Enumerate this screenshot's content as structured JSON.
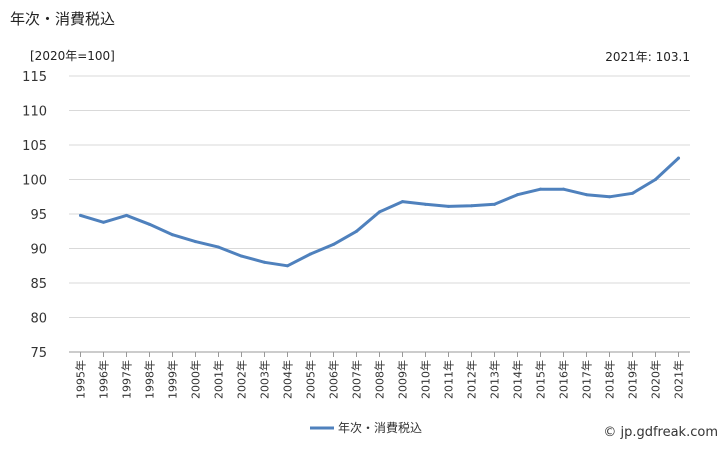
{
  "title": "年次・消費税込",
  "unit_label": "[2020年=100]",
  "latest_label": "2021年: 103.1",
  "credit": "© jp.gdfreak.com",
  "colors": {
    "series": "#4f81bd",
    "grid": "#d9d9d9",
    "axis": "#999999"
  },
  "chart_data": {
    "type": "line",
    "title": "",
    "xlabel": "",
    "ylabel": "",
    "ylim": [
      75,
      115
    ],
    "yticks": [
      75,
      80,
      85,
      90,
      95,
      100,
      105,
      110,
      115
    ],
    "grid": true,
    "legend_position": "bottom",
    "categories": [
      "1995年",
      "1996年",
      "1997年",
      "1998年",
      "1999年",
      "2000年",
      "2001年",
      "2002年",
      "2003年",
      "2004年",
      "2005年",
      "2006年",
      "2007年",
      "2008年",
      "2009年",
      "2010年",
      "2011年",
      "2012年",
      "2013年",
      "2014年",
      "2015年",
      "2016年",
      "2017年",
      "2018年",
      "2019年",
      "2020年",
      "2021年"
    ],
    "series": [
      {
        "name": "年次・消費税込",
        "values": [
          94.8,
          93.8,
          94.8,
          93.5,
          92.0,
          91.0,
          90.2,
          88.9,
          88.0,
          87.5,
          89.2,
          90.6,
          92.5,
          95.3,
          96.8,
          96.4,
          96.1,
          96.2,
          96.4,
          97.8,
          98.6,
          98.6,
          97.8,
          97.5,
          98.0,
          100.0,
          103.1
        ]
      }
    ]
  }
}
